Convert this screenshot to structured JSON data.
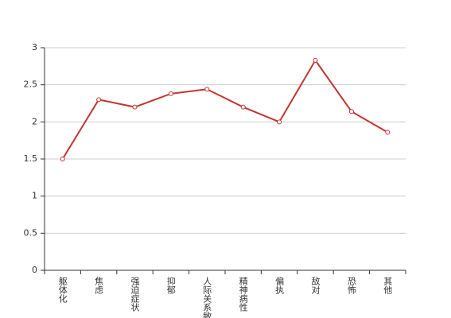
{
  "chart_data": {
    "type": "line",
    "categories": [
      "躯体化",
      "焦虑",
      "强迫症状",
      "抑郁",
      "人际关系敏感",
      "精神病性",
      "偏执",
      "敌对",
      "恐怖",
      "其他"
    ],
    "series": [
      {
        "color": "#c23531",
        "values": [
          1.5,
          2.3,
          2.2,
          2.38,
          2.44,
          2.2,
          2.0,
          2.83,
          2.14,
          1.86
        ]
      }
    ],
    "ylim": [
      0,
      3
    ],
    "yticks": [
      0,
      0.5,
      1,
      1.5,
      2,
      2.5,
      3
    ],
    "grid": true
  }
}
